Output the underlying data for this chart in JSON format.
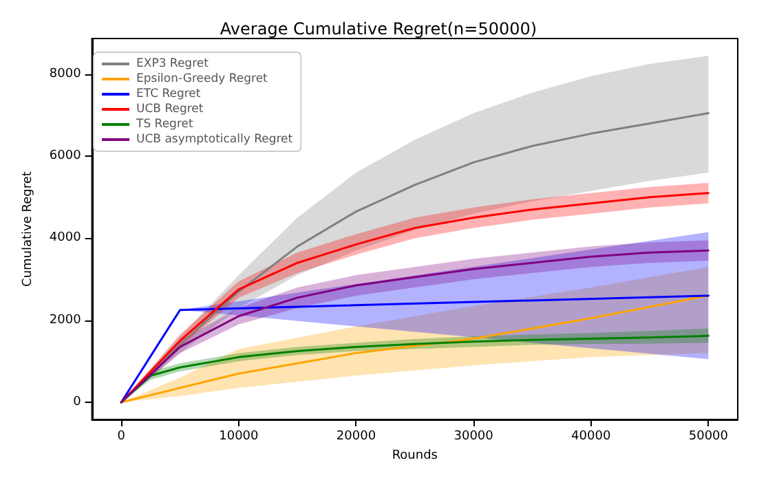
{
  "chart_data": {
    "type": "line",
    "title": "Average Cumulative Regret(n=50000)",
    "xlabel": "Rounds",
    "ylabel": "Cumulative Regret",
    "xlim": [
      -2500,
      52500
    ],
    "ylim": [
      -420,
      8870
    ],
    "xticks": [
      0,
      10000,
      20000,
      30000,
      40000,
      50000
    ],
    "yticks": [
      0,
      2000,
      4000,
      6000,
      8000
    ],
    "grid": false,
    "legend": "top left",
    "marker": "none",
    "line_style": "solid",
    "series": [
      {
        "name": "EXP3 Regret",
        "color": "#808080",
        "x": [
          0,
          5000,
          10000,
          15000,
          20000,
          25000,
          30000,
          35000,
          40000,
          45000,
          50000
        ],
        "values": [
          0,
          1400,
          2700,
          3800,
          4650,
          5300,
          5850,
          6250,
          6550,
          6800,
          7050
        ],
        "lower": [
          0,
          1200,
          2300,
          3100,
          3700,
          4200,
          4600,
          4900,
          5150,
          5400,
          5600
        ],
        "upper": [
          0,
          1600,
          3100,
          4500,
          5600,
          6400,
          7050,
          7550,
          7950,
          8250,
          8450
        ]
      },
      {
        "name": "Epsilon-Greedy Regret",
        "color": "#ffa500",
        "x": [
          0,
          5000,
          10000,
          20000,
          30000,
          40000,
          50000
        ],
        "values": [
          0,
          350,
          700,
          1200,
          1550,
          2050,
          2600
        ],
        "lower": [
          0,
          150,
          350,
          650,
          900,
          1100,
          1200
        ],
        "upper": [
          0,
          600,
          1300,
          1850,
          2350,
          2800,
          3300
        ]
      },
      {
        "name": "ETC Regret",
        "color": "#0000ff",
        "x": [
          0,
          5000,
          50000
        ],
        "values": [
          0,
          2250,
          2600
        ],
        "lower": [
          0,
          2250,
          1050
        ],
        "upper": [
          0,
          2250,
          4150
        ]
      },
      {
        "name": "UCB Regret",
        "color": "#ff0000",
        "x": [
          0,
          5000,
          10000,
          15000,
          20000,
          25000,
          30000,
          35000,
          40000,
          45000,
          50000
        ],
        "values": [
          0,
          1500,
          2750,
          3400,
          3850,
          4250,
          4500,
          4700,
          4850,
          5000,
          5100
        ],
        "lower": [
          0,
          1350,
          2550,
          3150,
          3600,
          4000,
          4250,
          4450,
          4600,
          4750,
          4850
        ],
        "upper": [
          0,
          1650,
          2950,
          3650,
          4100,
          4500,
          4750,
          4950,
          5100,
          5250,
          5350
        ]
      },
      {
        "name": "TS Regret",
        "color": "#008000",
        "x": [
          0,
          2500,
          5000,
          10000,
          15000,
          20000,
          25000,
          30000,
          35000,
          40000,
          45000,
          50000
        ],
        "values": [
          0,
          650,
          850,
          1100,
          1250,
          1350,
          1420,
          1480,
          1520,
          1550,
          1580,
          1620
        ],
        "lower": [
          0,
          550,
          750,
          1000,
          1150,
          1250,
          1300,
          1350,
          1400,
          1420,
          1430,
          1450
        ],
        "upper": [
          0,
          750,
          950,
          1200,
          1350,
          1450,
          1540,
          1610,
          1650,
          1690,
          1740,
          1800
        ]
      },
      {
        "name": "UCB asymptotically Regret",
        "color": "#800080",
        "x": [
          0,
          5000,
          10000,
          15000,
          20000,
          25000,
          30000,
          35000,
          40000,
          45000,
          50000
        ],
        "values": [
          0,
          1350,
          2100,
          2550,
          2850,
          3050,
          3250,
          3400,
          3550,
          3650,
          3700
        ],
        "lower": [
          0,
          1200,
          1900,
          2300,
          2600,
          2800,
          3000,
          3150,
          3300,
          3400,
          3450
        ],
        "upper": [
          0,
          1500,
          2300,
          2800,
          3100,
          3300,
          3500,
          3650,
          3800,
          3900,
          3950
        ]
      }
    ]
  }
}
